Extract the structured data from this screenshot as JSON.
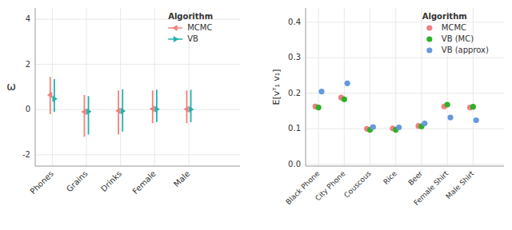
{
  "chart_data": [
    {
      "type": "point_range",
      "ylabel": "ω",
      "categories": [
        "Phones",
        "Grains",
        "Drinks",
        "Female",
        "Male"
      ],
      "ylim": [
        -2.5,
        4.5
      ],
      "yticks": [
        -2,
        0,
        2,
        4
      ],
      "grid": true,
      "legend": "upper right",
      "legend_title": "Algorithm",
      "series": [
        {
          "name": "MCMC",
          "color": "#F08080",
          "marker": "triangle-left",
          "values": [
            0.65,
            -0.1,
            -0.05,
            0.04,
            0.02
          ],
          "lowers": [
            -0.2,
            -1.2,
            -1.1,
            -0.6,
            -0.6
          ],
          "uppers": [
            1.45,
            0.65,
            0.85,
            0.85,
            0.85
          ]
        },
        {
          "name": "VB",
          "color": "#20B2AA",
          "marker": "triangle-right",
          "values": [
            0.48,
            -0.09,
            -0.06,
            0.02,
            0.01
          ],
          "lowers": [
            -0.1,
            -1.1,
            -0.97,
            -0.55,
            -0.55
          ],
          "uppers": [
            1.35,
            0.6,
            0.9,
            0.88,
            0.88
          ]
        }
      ]
    },
    {
      "type": "dot",
      "ylabel": "E[vᵀ₁ v₁]",
      "categories": [
        "Black Phone",
        "City Phone",
        "Couscous",
        "Rice",
        "Beer",
        "Female Shirt",
        "Male Shirt"
      ],
      "ylim": [
        -0.005,
        0.44
      ],
      "yticks": [
        {
          "value": 0,
          "label": "0.0"
        },
        0.1,
        0.2,
        0.3,
        0.4
      ],
      "grid": true,
      "legend": "upper right",
      "legend_title": "Algorithm",
      "series": [
        {
          "name": "MCMC",
          "color": "#F08080",
          "marker": "circle",
          "values": [
            0.163,
            0.188,
            0.1,
            0.101,
            0.108,
            0.163,
            0.16
          ]
        },
        {
          "name": "VB (MC)",
          "color": "#2db027",
          "marker": "circle",
          "values": [
            0.16,
            0.183,
            0.097,
            0.097,
            0.107,
            0.168,
            0.162
          ]
        },
        {
          "name": "VB (approx)",
          "color": "#6699dd",
          "marker": "circle",
          "values": [
            0.205,
            0.228,
            0.105,
            0.104,
            0.115,
            0.132,
            0.124
          ]
        }
      ]
    }
  ]
}
